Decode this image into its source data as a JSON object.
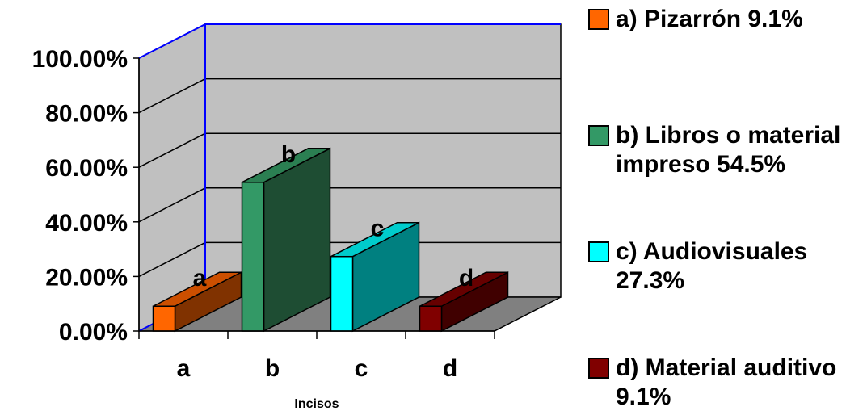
{
  "chart_data": {
    "type": "bar",
    "categories": [
      "a",
      "b",
      "c",
      "d"
    ],
    "values": [
      9.1,
      54.5,
      27.3,
      9.1
    ],
    "data_labels": [
      "a",
      "b",
      "c",
      "d"
    ],
    "xlabel": "Incisos",
    "ylabel": "",
    "ylim": [
      0,
      100
    ],
    "y_ticks": [
      "0.00%",
      "20.00%",
      "40.00%",
      "60.00%",
      "80.00%",
      "100.00%"
    ],
    "grid": true,
    "style": "3d",
    "legend_position": "right",
    "legend": [
      {
        "label": "a) Pizarrón 9.1%",
        "color": "#FF6600"
      },
      {
        "label": "b) Libros o material impreso 54.5%",
        "color": "#339966"
      },
      {
        "label": "c) Audiovisuales 27.3%",
        "color": "#00FFFF"
      },
      {
        "label": "d) Material auditivo 9.1%",
        "color": "#800000"
      }
    ],
    "colors": {
      "front": [
        "#FF6600",
        "#339966",
        "#00FFFF",
        "#800000"
      ],
      "top": [
        "#CC4F00",
        "#2B7F52",
        "#00CCCC",
        "#660000"
      ],
      "side": [
        "#803200",
        "#1E4D33",
        "#008080",
        "#400000"
      ],
      "wall": "#C0C0C0",
      "floor": "#808080",
      "axis_line": "#0000FF"
    }
  }
}
